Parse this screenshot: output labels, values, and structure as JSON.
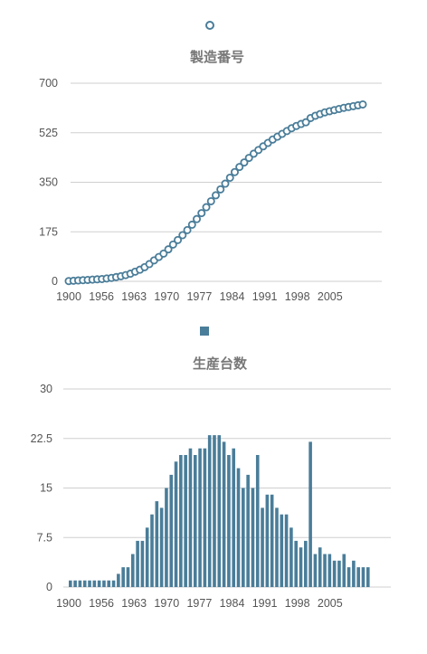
{
  "colors": {
    "series": "#4a7d99",
    "grid": "#cfcfcf",
    "text": "#555555",
    "title": "#777777"
  },
  "chart_data": [
    {
      "type": "scatter",
      "title": "製造番号",
      "legend": "top-center",
      "legend_marker": "circle",
      "grid": true,
      "ylim": [
        0,
        700
      ],
      "yticks": [
        "0",
        "175",
        "350",
        "525",
        "700"
      ],
      "xticks": [
        "1900",
        "1956",
        "1963",
        "1970",
        "1977",
        "1984",
        "1991",
        "1998",
        "2005"
      ],
      "x": [
        "1900",
        "1951",
        "1952",
        "1953",
        "1954",
        "1955",
        "1956",
        "1957",
        "1958",
        "1959",
        "1960",
        "1961",
        "1962",
        "1963",
        "1964",
        "1965",
        "1966",
        "1967",
        "1968",
        "1969",
        "1970",
        "1971",
        "1972",
        "1973",
        "1974",
        "1975",
        "1976",
        "1977",
        "1978",
        "1979",
        "1980",
        "1981",
        "1982",
        "1983",
        "1984",
        "1985",
        "1986",
        "1987",
        "1988",
        "1989",
        "1990",
        "1991",
        "1992",
        "1993",
        "1994",
        "1995",
        "1996",
        "1997",
        "1998",
        "1999",
        "2000",
        "2001",
        "2002",
        "2003",
        "2004",
        "2005",
        "2006",
        "2007",
        "2008",
        "2009",
        "2010",
        "2011",
        "2012"
      ],
      "values": [
        1,
        2,
        3,
        4,
        5,
        6,
        7,
        8,
        10,
        12,
        15,
        18,
        22,
        27,
        34,
        41,
        50,
        61,
        74,
        86,
        98,
        113,
        130,
        146,
        163,
        181,
        200,
        220,
        241,
        262,
        283,
        304,
        325,
        345,
        366,
        386,
        404,
        420,
        436,
        451,
        464,
        477,
        489,
        501,
        511,
        521,
        531,
        541,
        549,
        556,
        562,
        577,
        585,
        591,
        597,
        601,
        605,
        609,
        613,
        616,
        619,
        622,
        625
      ]
    },
    {
      "type": "bar",
      "title": "生産台数",
      "legend": "top-center",
      "legend_marker": "square",
      "grid": true,
      "ylim": [
        0,
        30
      ],
      "yticks": [
        "0",
        "7.5",
        "15",
        "22.5",
        "30"
      ],
      "xticks": [
        "1900",
        "1956",
        "1963",
        "1970",
        "1977",
        "1984",
        "1991",
        "1998",
        "2005"
      ],
      "x": [
        "1900",
        "1951",
        "1952",
        "1953",
        "1954",
        "1955",
        "1956",
        "1957",
        "1958",
        "1959",
        "1960",
        "1961",
        "1962",
        "1963",
        "1964",
        "1965",
        "1966",
        "1967",
        "1968",
        "1969",
        "1970",
        "1971",
        "1972",
        "1973",
        "1974",
        "1975",
        "1976",
        "1977",
        "1978",
        "1979",
        "1980",
        "1981",
        "1982",
        "1983",
        "1984",
        "1985",
        "1986",
        "1987",
        "1988",
        "1989",
        "1990",
        "1991",
        "1992",
        "1993",
        "1994",
        "1995",
        "1996",
        "1997",
        "1998",
        "1999",
        "2000",
        "2001",
        "2002",
        "2003",
        "2004",
        "2005",
        "2006",
        "2007",
        "2008",
        "2009",
        "2010",
        "2011",
        "2012"
      ],
      "values": [
        1,
        1,
        1,
        1,
        1,
        1,
        1,
        1,
        1,
        1,
        2,
        3,
        3,
        5,
        7,
        7,
        9,
        11,
        13,
        12,
        15,
        17,
        19,
        20,
        20,
        21,
        20,
        21,
        21,
        23,
        23,
        23,
        22,
        20,
        21,
        18,
        15,
        17,
        15,
        20,
        12,
        14,
        14,
        12,
        11,
        11,
        9,
        7,
        6,
        7,
        22,
        5,
        6,
        5,
        5,
        4,
        4,
        5,
        3,
        4,
        3,
        3,
        3
      ]
    }
  ]
}
